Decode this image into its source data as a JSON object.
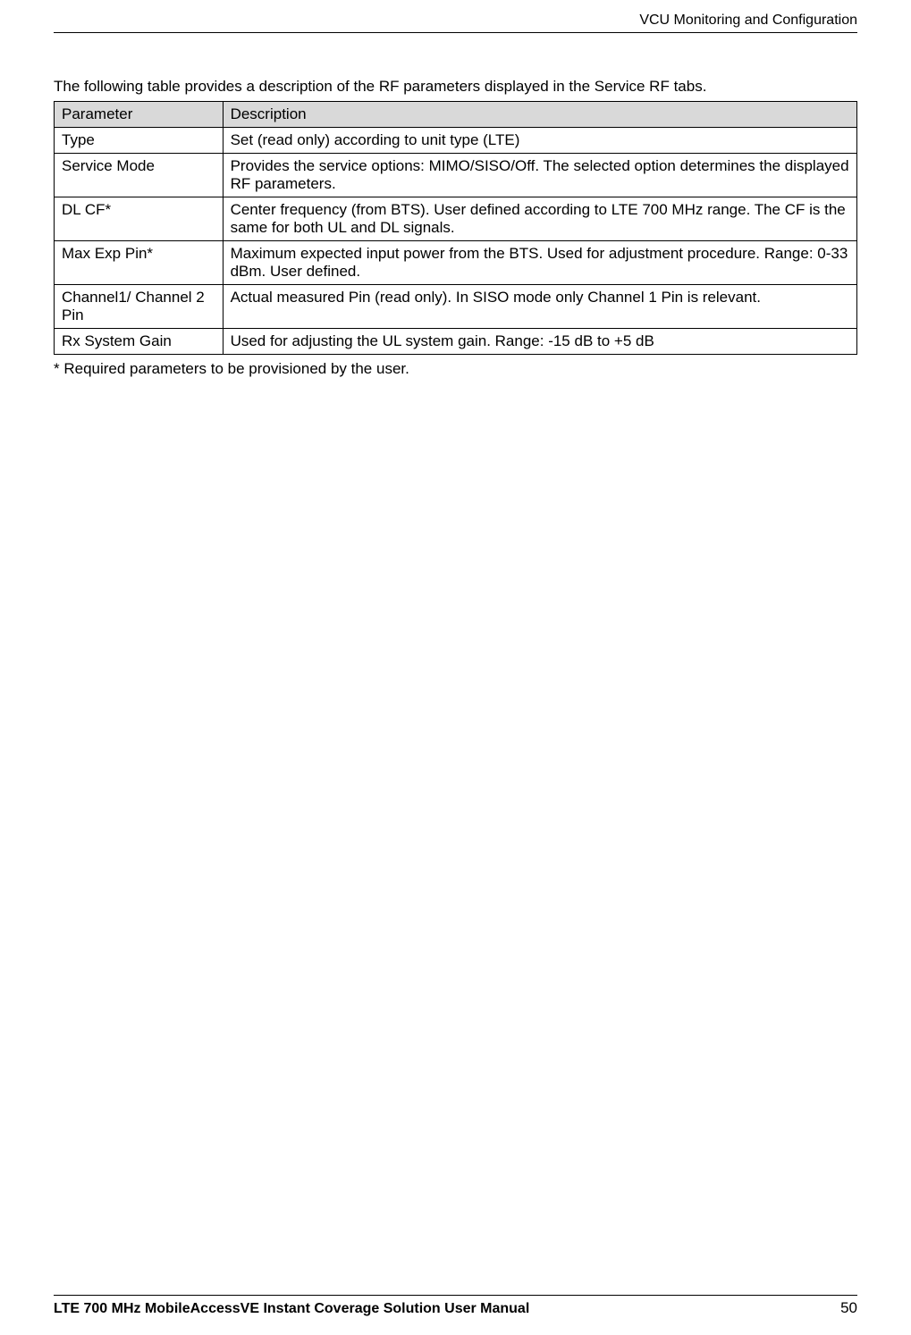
{
  "header": {
    "section_title": "VCU Monitoring and Configuration"
  },
  "content": {
    "intro": "The following table provides a description of the RF parameters displayed in the Service RF tabs.",
    "table": {
      "columns": [
        "Parameter",
        "Description"
      ],
      "rows": [
        {
          "param": "Type",
          "desc": "Set (read only) according to unit type (LTE)"
        },
        {
          "param": "Service Mode",
          "desc": "Provides the service options: MIMO/SISO/Off. The selected option determines the displayed RF parameters."
        },
        {
          "param": "DL CF*",
          "desc": "Center frequency (from BTS). User defined according to LTE 700 MHz range. The CF is the same for both UL and DL signals."
        },
        {
          "param": "Max Exp Pin*",
          "desc": "Maximum expected input power from the BTS. Used for adjustment procedure. Range: 0-33 dBm. User defined."
        },
        {
          "param": "Channel1/ Channel 2 Pin",
          "desc": "Actual measured Pin (read only). In SISO mode only Channel 1 Pin is relevant."
        },
        {
          "param": "Rx System Gain",
          "desc": "Used for adjusting the UL system gain. Range: -15 dB to +5 dB"
        }
      ]
    },
    "footnote": "* Required parameters to be provisioned by the user."
  },
  "footer": {
    "manual_title": "LTE 700 MHz MobileAccessVE Instant Coverage Solution User Manual",
    "page_number": "50"
  },
  "styles": {
    "header_bg": "#d9d9d9",
    "border_color": "#000000",
    "body_font_size": 17,
    "header_font_size": 16
  }
}
